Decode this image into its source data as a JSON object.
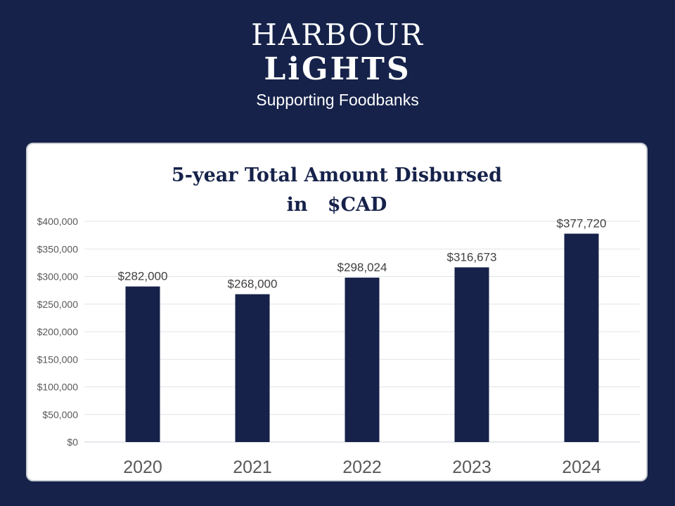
{
  "logo": {
    "line1": "HARBOUR",
    "line2": "LiGHTS",
    "tagline": "Supporting Foodbanks"
  },
  "colors": {
    "background": "#16224a",
    "bar": "#16224a",
    "card": "#ffffff"
  },
  "chart_data": {
    "type": "bar",
    "title_line1": "5-year Total Amount Disbursed",
    "title_line2": "in   $CAD",
    "categories": [
      "2020",
      "2021",
      "2022",
      "2023",
      "2024"
    ],
    "values": [
      282000,
      268000,
      298024,
      316673,
      377720
    ],
    "value_labels": [
      "$282,000",
      "$268,000",
      "$298,024",
      "$316,673",
      "$377,720"
    ],
    "yticks": [
      0,
      50000,
      100000,
      150000,
      200000,
      250000,
      300000,
      350000,
      400000
    ],
    "ytick_labels": [
      "$0",
      "$50,000",
      "$100,000",
      "$150,000",
      "$200,000",
      "$250,000",
      "$300,000",
      "$350,000",
      "$400,000"
    ],
    "ylim": [
      0,
      400000
    ],
    "grid": true
  }
}
